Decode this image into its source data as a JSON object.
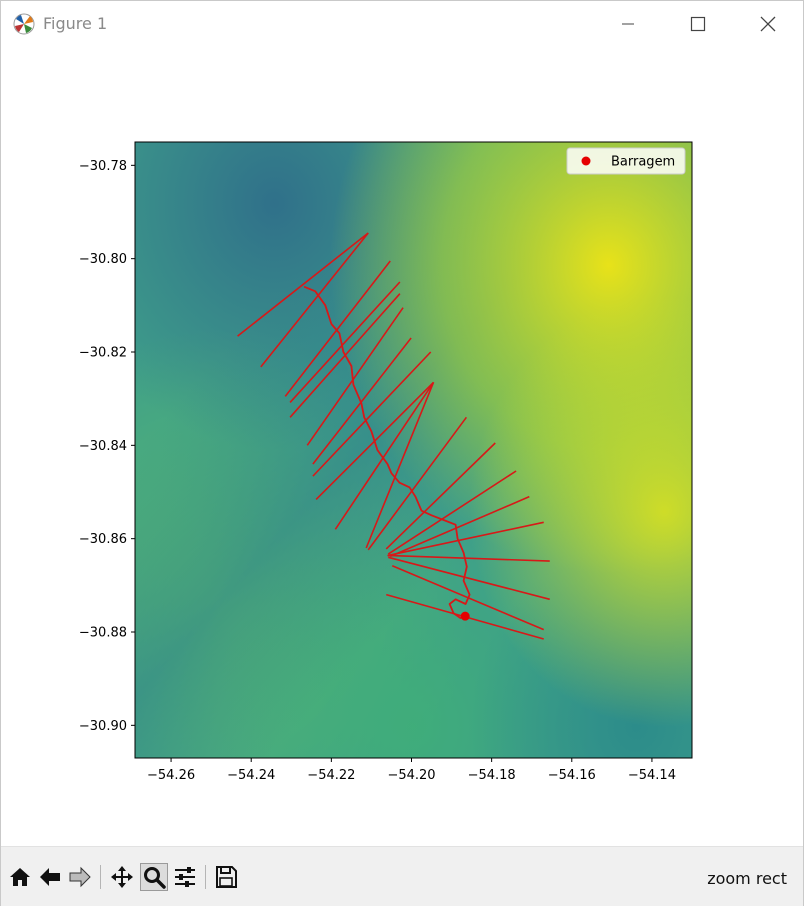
{
  "window": {
    "title": "Figure 1",
    "app_icon": "matplotlib-icon",
    "controls": [
      "minimize-icon",
      "maximize-icon",
      "close-icon"
    ]
  },
  "toolbar": {
    "buttons": [
      "home-icon",
      "back-arrow-icon",
      "forward-arrow-icon",
      "pan-icon",
      "zoom-icon",
      "configure-subplots-icon",
      "save-icon"
    ],
    "active": "zoom-icon",
    "status_text": "zoom rect"
  },
  "chart_data": {
    "type": "scatter",
    "background": "elevation raster (viridis colormap)",
    "xlim": [
      -54.269,
      -54.13
    ],
    "ylim": [
      -30.907,
      -30.775
    ],
    "x_ticks": [
      -54.26,
      -54.24,
      -54.22,
      -54.2,
      -54.18,
      -54.16,
      -54.14
    ],
    "x_tick_labels": [
      "−54.26",
      "−54.24",
      "−54.22",
      "−54.20",
      "−54.18",
      "−54.16",
      "−54.14"
    ],
    "y_ticks": [
      -30.78,
      -30.8,
      -30.82,
      -30.84,
      -30.86,
      -30.88,
      -30.9
    ],
    "y_tick_labels": [
      "−30.78",
      "−30.80",
      "−30.82",
      "−30.84",
      "−30.86",
      "−30.88",
      "−30.90"
    ],
    "legend": {
      "placement": "top-right",
      "entries": [
        "Barragem"
      ]
    },
    "series": [
      {
        "name": "Barragem",
        "marker": "circle",
        "color": "#e50000",
        "points": [
          [
            -54.1866,
            -30.8766
          ]
        ]
      }
    ],
    "river_color": "#d81818",
    "river": [
      [
        -54.2268,
        -30.806
      ],
      [
        -54.224,
        -30.807
      ],
      [
        -54.2215,
        -30.81
      ],
      [
        -54.22,
        -30.814
      ],
      [
        -54.218,
        -30.816
      ],
      [
        -54.217,
        -30.82
      ],
      [
        -54.215,
        -30.823
      ],
      [
        -54.2145,
        -30.827
      ],
      [
        -54.2125,
        -30.831
      ],
      [
        -54.2118,
        -30.834
      ],
      [
        -54.21,
        -30.837
      ],
      [
        -54.2085,
        -30.841
      ],
      [
        -54.206,
        -30.844
      ],
      [
        -54.205,
        -30.846
      ],
      [
        -54.203,
        -30.848
      ],
      [
        -54.2005,
        -30.849
      ],
      [
        -54.199,
        -30.851
      ],
      [
        -54.1975,
        -30.854
      ],
      [
        -54.195,
        -30.855
      ],
      [
        -54.192,
        -30.856
      ],
      [
        -54.189,
        -30.857
      ],
      [
        -54.1885,
        -30.86
      ],
      [
        -54.187,
        -30.863
      ],
      [
        -54.1862,
        -30.866
      ],
      [
        -54.187,
        -30.869
      ],
      [
        -54.1855,
        -30.872
      ],
      [
        -54.1865,
        -30.874
      ],
      [
        -54.189,
        -30.873
      ],
      [
        -54.1905,
        -30.874
      ],
      [
        -54.1895,
        -30.876
      ],
      [
        -54.1878,
        -30.877
      ],
      [
        -54.1866,
        -30.8766
      ]
    ],
    "cross_sections_color": "#d81818",
    "cross_sections": [
      [
        [
          -54.2434,
          -30.8166
        ],
        [
          -54.2108,
          -30.7945
        ]
      ],
      [
        [
          -54.2376,
          -30.8232
        ],
        [
          -54.2108,
          -30.7945
        ]
      ],
      [
        [
          -54.2315,
          -30.8295
        ],
        [
          -54.2053,
          -30.8005
        ]
      ],
      [
        [
          -54.2303,
          -30.8308
        ],
        [
          -54.2029,
          -30.805
        ]
      ],
      [
        [
          -54.2303,
          -30.834
        ],
        [
          -54.2029,
          -30.8075
        ]
      ],
      [
        [
          -54.226,
          -30.84
        ],
        [
          -54.2021,
          -30.8105
        ]
      ],
      [
        [
          -54.2246,
          -30.844
        ],
        [
          -54.2001,
          -30.817
        ]
      ],
      [
        [
          -54.2246,
          -30.8466
        ],
        [
          -54.1952,
          -30.82
        ]
      ],
      [
        [
          -54.2238,
          -30.8516
        ],
        [
          -54.1945,
          -30.8265
        ]
      ],
      [
        [
          -54.219,
          -30.858
        ],
        [
          -54.1945,
          -30.8265
        ]
      ],
      [
        [
          -54.2113,
          -30.862
        ],
        [
          -54.1945,
          -30.8265
        ]
      ],
      [
        [
          -54.2108,
          -30.8624
        ],
        [
          -54.1863,
          -30.834
        ]
      ],
      [
        [
          -54.2063,
          -30.8622
        ],
        [
          -54.1791,
          -30.8395
        ]
      ],
      [
        [
          -54.2058,
          -30.8633
        ],
        [
          -54.1739,
          -30.8455
        ]
      ],
      [
        [
          -54.2053,
          -30.8638
        ],
        [
          -54.1706,
          -30.851
        ]
      ],
      [
        [
          -54.2058,
          -30.8636
        ],
        [
          -54.167,
          -30.8565
        ]
      ],
      [
        [
          -54.206,
          -30.8636
        ],
        [
          -54.1655,
          -30.8648
        ]
      ],
      [
        [
          -54.2058,
          -30.864
        ],
        [
          -54.1655,
          -30.873
        ]
      ],
      [
        [
          -54.2048,
          -30.8658
        ],
        [
          -54.167,
          -30.8795
        ]
      ],
      [
        [
          -54.2063,
          -30.872
        ],
        [
          -54.167,
          -30.8815
        ]
      ]
    ]
  }
}
